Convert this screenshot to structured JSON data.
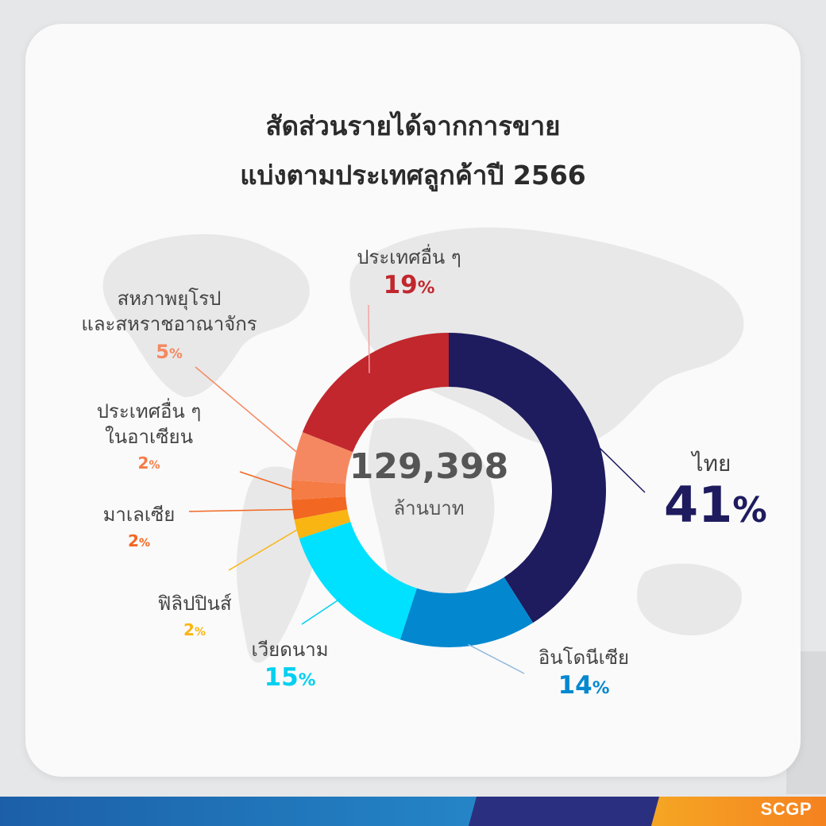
{
  "title_lines": [
    "สัดส่วนรายได้จากการขาย",
    "แบ่งตามประเทศลูกค้าปี 2566"
  ],
  "center": {
    "value": "129,398",
    "unit": "ล้านบาท"
  },
  "brand": "SCGP",
  "chart_data": {
    "type": "pie",
    "donut": true,
    "title": "สัดส่วนรายได้จากการขาย แบ่งตามประเทศลูกค้าปี 2566",
    "total": "129,398",
    "unit": "ล้านบาท",
    "slices": [
      {
        "name": "ไทย",
        "value": 41,
        "label": "41",
        "color": "#1e1b5e"
      },
      {
        "name": "อินโดนีเซีย",
        "value": 14,
        "label": "14",
        "color": "#0388d0"
      },
      {
        "name": "เวียดนาม",
        "value": 15,
        "label": "15",
        "color": "#00e1ff"
      },
      {
        "name": "ฟิลิปปินส์",
        "value": 2,
        "label": "2",
        "color": "#f9b512"
      },
      {
        "name": "มาเลเซีย",
        "value": 2,
        "label": "2",
        "color": "#f26722"
      },
      {
        "name": "ประเทศอื่น ๆ ในอาเซียน",
        "value": 2,
        "label": "2",
        "color": "#f57c45"
      },
      {
        "name": "สหภาพยุโรปและสหราชอาณาจักร",
        "value": 5,
        "label": "5",
        "color": "#f58860"
      },
      {
        "name": "ประเทศอื่น ๆ",
        "value": 19,
        "label": "19",
        "color": "#c1272d"
      }
    ]
  },
  "labels": {
    "thai": {
      "name": "ไทย",
      "pct": "41"
    },
    "indo": {
      "name": "อินโดนีเซีย",
      "pct": "14"
    },
    "viet": {
      "name": "เวียดนาม",
      "pct": "15"
    },
    "phil": {
      "name": "ฟิลิปปินส์",
      "pct": "2"
    },
    "malay": {
      "name": "มาเลเซีย",
      "pct": "2"
    },
    "asean": {
      "name_lines": [
        "ประเทศอื่น ๆ",
        "ในอาเซียน"
      ],
      "pct": "2"
    },
    "eu": {
      "name_lines": [
        "สหภาพยุโรป",
        "และสหราชอาณาจักร"
      ],
      "pct": "5"
    },
    "other": {
      "name": "ประเทศอื่น ๆ",
      "pct": "19"
    },
    "percent_sign": "%"
  }
}
